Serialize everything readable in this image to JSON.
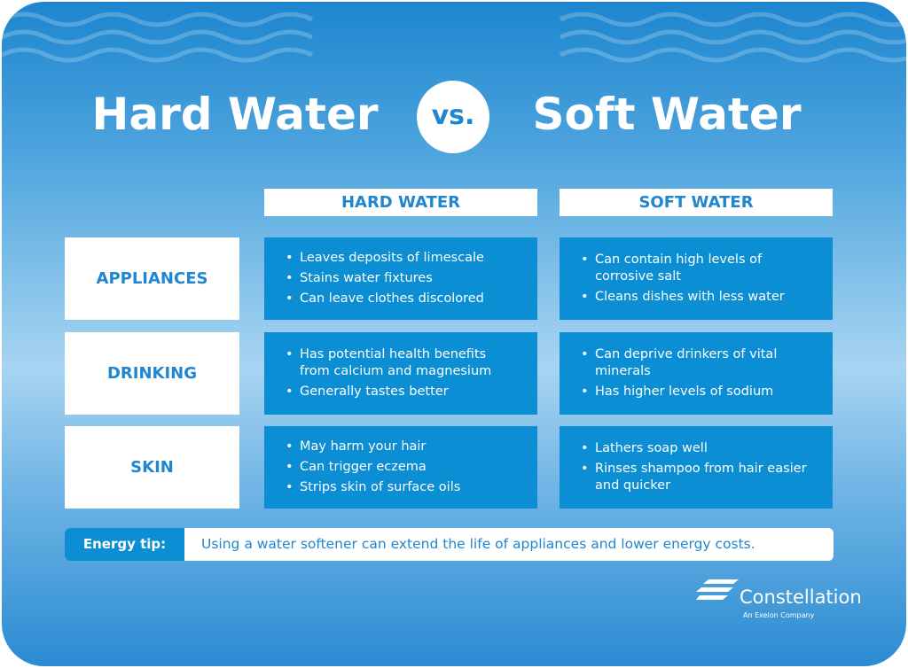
{
  "header": {
    "left_title": "Hard Water",
    "versus": "vs.",
    "right_title": "Soft Water"
  },
  "table": {
    "columns": [
      "HARD WATER",
      "SOFT WATER"
    ],
    "rows": [
      {
        "label": "APPLIANCES",
        "cells": [
          [
            "Leaves deposits of limescale",
            "Stains water fixtures",
            "Can leave clothes discolored"
          ],
          [
            "Can contain high levels of corrosive salt",
            "Cleans dishes with less water"
          ]
        ]
      },
      {
        "label": "DRINKING",
        "cells": [
          [
            "Has potential health benefits from calcium and magnesium",
            "Generally tastes better"
          ],
          [
            "Can deprive drinkers of vital minerals",
            "Has higher levels of sodium"
          ]
        ]
      },
      {
        "label": "SKIN",
        "cells": [
          [
            "May harm your hair",
            "Can trigger eczema",
            "Strips skin of surface oils"
          ],
          [
            "Lathers soap well",
            "Rinses shampoo from hair easier and quicker"
          ]
        ]
      }
    ]
  },
  "tip": {
    "label": "Energy tip:",
    "text": "Using a water softener can extend the life of appliances and lower energy costs."
  },
  "logo": {
    "name": "Constellation",
    "tagline": "An Exelon Company"
  }
}
